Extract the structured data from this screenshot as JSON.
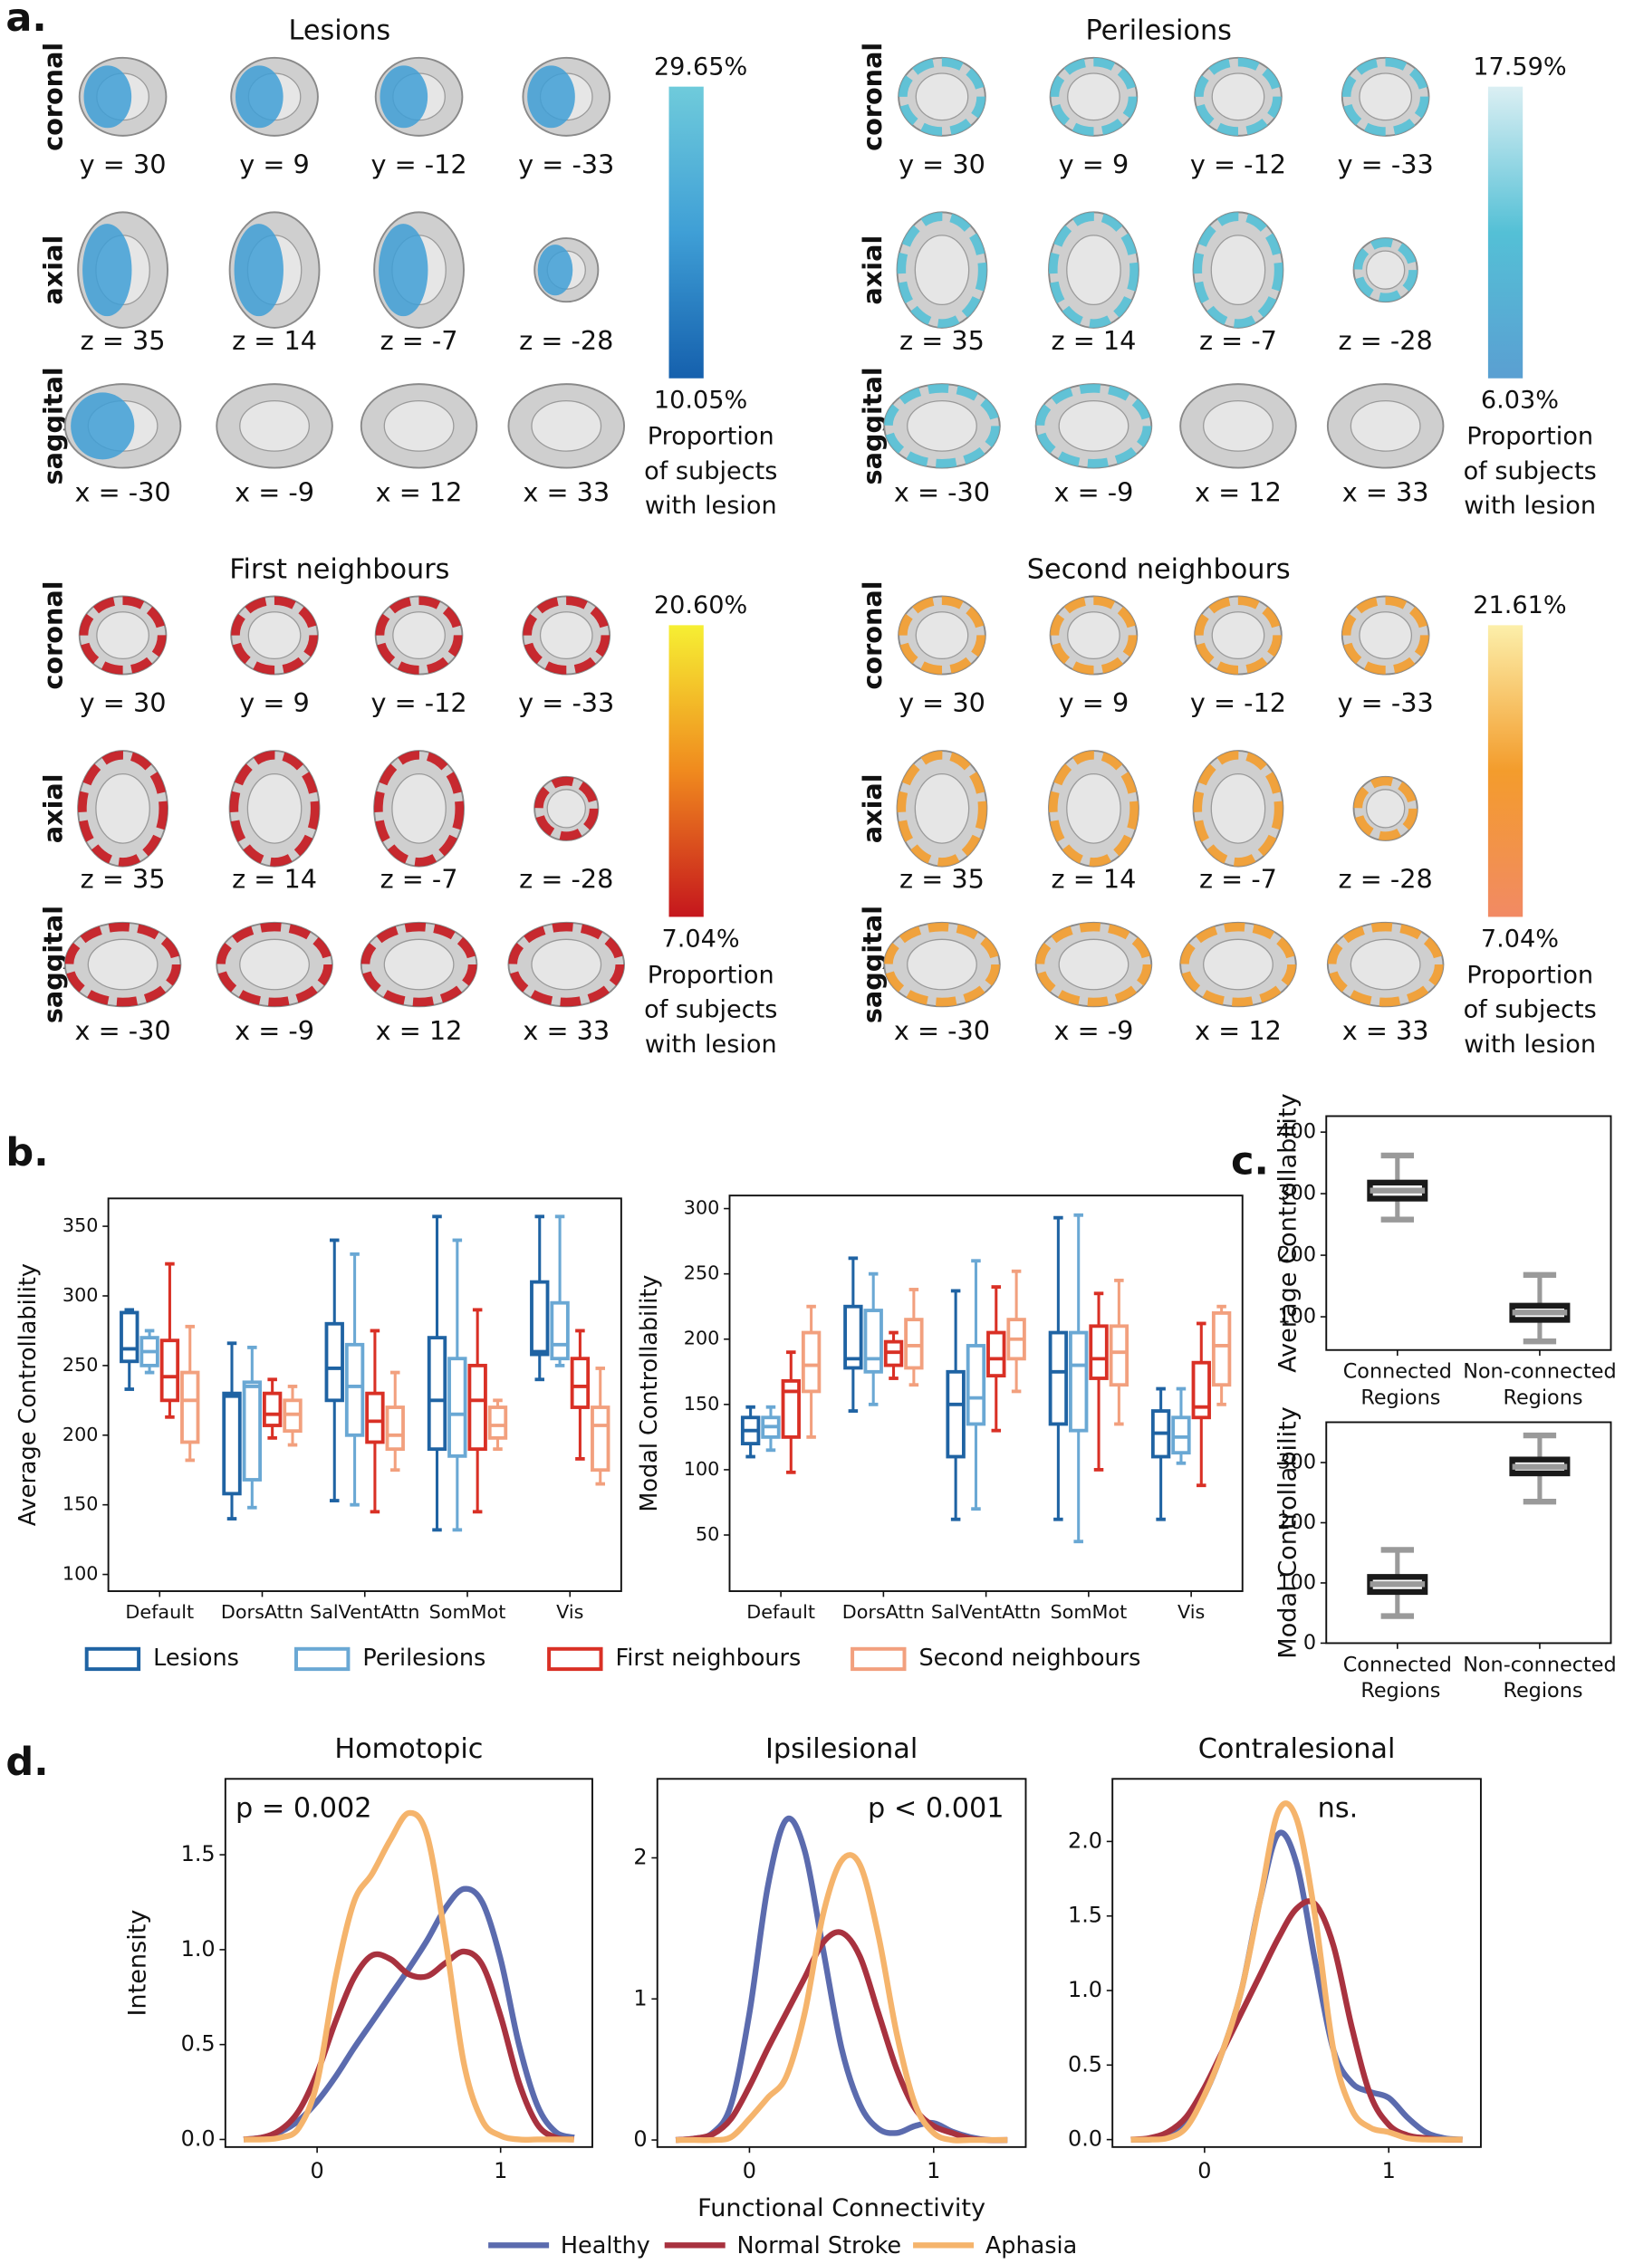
{
  "panel_labels": [
    "a.",
    "b.",
    "c.",
    "d."
  ],
  "brain_maps": [
    {
      "title": "Lesions",
      "views": [
        "coronal",
        "axial",
        "saggital"
      ],
      "slices": [
        [
          "y = 30",
          "y = 9",
          "y = -12",
          "y = -33"
        ],
        [
          "z = 35",
          "z = 14",
          "z = -7",
          "z = -28"
        ],
        [
          "x = -30",
          "x = -9",
          "x = 12",
          "x = 33"
        ]
      ],
      "colorbar": {
        "max": "29.65%",
        "min": "10.05%",
        "label": [
          "Proportion",
          "of subjects",
          "with lesion"
        ],
        "colors": [
          "#6fcbdb",
          "#3f9fd6",
          "#1560ad"
        ]
      }
    },
    {
      "title": "Perilesions",
      "views": [
        "coronal",
        "axial",
        "saggital"
      ],
      "slices": [
        [
          "y = 30",
          "y = 9",
          "y = -12",
          "y = -33"
        ],
        [
          "z = 35",
          "z = 14",
          "z = -7",
          "z = -28"
        ],
        [
          "x = -30",
          "x = -9",
          "x = 12",
          "x = 33"
        ]
      ],
      "colorbar": {
        "max": "17.59%",
        "min": "6.03%",
        "label": [
          "Proportion",
          "of subjects",
          "with lesion"
        ],
        "colors": [
          "#dbeff3",
          "#54c0d6",
          "#5a9fd2"
        ]
      }
    },
    {
      "title": "First neighbours",
      "views": [
        "coronal",
        "axial",
        "saggital"
      ],
      "slices": [
        [
          "y = 30",
          "y = 9",
          "y = -12",
          "y = -33"
        ],
        [
          "z = 35",
          "z = 14",
          "z = -7",
          "z = -28"
        ],
        [
          "x = -30",
          "x = -9",
          "x = 12",
          "x = 33"
        ]
      ],
      "colorbar": {
        "max": "20.60%",
        "min": "7.04%",
        "label": [
          "Proportion",
          "of subjects",
          "with lesion"
        ],
        "colors": [
          "#f6ef33",
          "#f08a1e",
          "#c5161d"
        ]
      }
    },
    {
      "title": "Second neighbours",
      "views": [
        "coronal",
        "axial",
        "saggital"
      ],
      "slices": [
        [
          "y = 30",
          "y = 9",
          "y = -12",
          "y = -33"
        ],
        [
          "z = 35",
          "z = 14",
          "z = -7",
          "z = -28"
        ],
        [
          "x = -30",
          "x = -9",
          "x = 12",
          "x = 33"
        ]
      ],
      "colorbar": {
        "max": "21.61%",
        "min": "7.04%",
        "label": [
          "Proportion",
          "of subjects",
          "with lesion"
        ],
        "colors": [
          "#fcefaa",
          "#f39c2c",
          "#f28a64"
        ]
      }
    }
  ],
  "chart_data": [
    {
      "type": "box",
      "ylabel": "Average Controllability",
      "categories": [
        "Default",
        "DorsAttn",
        "SalVentAttn",
        "SomMot",
        "Vis"
      ],
      "ylim": [
        88,
        370
      ],
      "yticks": [
        100,
        150,
        200,
        250,
        300,
        350
      ],
      "series": [
        {
          "name": "Lesions",
          "color": "#1f63a3",
          "values": [
            [
              233,
              253,
              262,
              288,
              290
            ],
            [
              140,
              158,
              228,
              230,
              266
            ],
            [
              153,
              225,
              248,
              280,
              340
            ],
            [
              132,
              190,
              225,
              270,
              357
            ],
            [
              240,
              258,
              260,
              310,
              357
            ]
          ]
        },
        {
          "name": "Perilesions",
          "color": "#6aa8d4",
          "values": [
            [
              245,
              250,
              260,
              270,
              275
            ],
            [
              148,
              168,
              235,
              238,
              263
            ],
            [
              150,
              200,
              235,
              265,
              330
            ],
            [
              132,
              185,
              215,
              255,
              340
            ],
            [
              250,
              255,
              265,
              295,
              357
            ]
          ]
        },
        {
          "name": "First neighbours",
          "color": "#d93025",
          "values": [
            [
              213,
              225,
              242,
              268,
              323
            ],
            [
              198,
              207,
              215,
              230,
              240
            ],
            [
              145,
              195,
              210,
              230,
              275
            ],
            [
              145,
              190,
              225,
              250,
              290
            ],
            [
              183,
              220,
              235,
              255,
              275
            ]
          ]
        },
        {
          "name": "Second neighbours",
          "color": "#f2a07e",
          "values": [
            [
              182,
              195,
              225,
              245,
              278
            ],
            [
              193,
              203,
              215,
              225,
              235
            ],
            [
              175,
              190,
              200,
              220,
              245
            ],
            [
              190,
              198,
              207,
              220,
              225
            ],
            [
              165,
              175,
              207,
              220,
              248
            ]
          ]
        }
      ]
    },
    {
      "type": "box",
      "ylabel": "Modal Controllability",
      "categories": [
        "Default",
        "DorsAttn",
        "SalVentAttn",
        "SomMot",
        "Vis"
      ],
      "ylim": [
        7,
        310
      ],
      "yticks": [
        50,
        100,
        150,
        200,
        250,
        300
      ],
      "series": [
        {
          "color": "#1f63a3",
          "values": [
            [
              110,
              120,
              130,
              140,
              148
            ],
            [
              145,
              178,
              185,
              225,
              262
            ],
            [
              62,
              110,
              150,
              175,
              237
            ],
            [
              62,
              135,
              175,
              205,
              293
            ],
            [
              62,
              110,
              128,
              145,
              162
            ]
          ]
        },
        {
          "color": "#6aa8d4",
          "values": [
            [
              115,
              125,
              133,
              140,
              148
            ],
            [
              150,
              175,
              185,
              222,
              250
            ],
            [
              70,
              135,
              155,
              195,
              260
            ],
            [
              45,
              130,
              180,
              205,
              295
            ],
            [
              105,
              113,
              125,
              140,
              162
            ]
          ]
        },
        {
          "color": "#d93025",
          "values": [
            [
              98,
              125,
              160,
              168,
              190
            ],
            [
              170,
              180,
              190,
              198,
              205
            ],
            [
              130,
              172,
              185,
              205,
              240
            ],
            [
              100,
              170,
              185,
              210,
              235
            ],
            [
              88,
              140,
              148,
              182,
              212
            ]
          ]
        },
        {
          "color": "#f2a07e",
          "values": [
            [
              125,
              160,
              180,
              205,
              225
            ],
            [
              165,
              178,
              195,
              215,
              238
            ],
            [
              160,
              185,
              200,
              215,
              252
            ],
            [
              135,
              165,
              190,
              210,
              245
            ],
            [
              150,
              165,
              195,
              220,
              225
            ]
          ]
        }
      ]
    },
    {
      "type": "box",
      "ylabel": "Average Controllability",
      "categories": [
        "Connected Regions",
        "Non-connected Regions"
      ],
      "ylim": [
        46,
        426
      ],
      "yticks": [
        100,
        200,
        300,
        400
      ],
      "series": [
        {
          "color": "#1a1a1a",
          "median_color": "#9a9a9a",
          "values": [
            [
              258,
              292,
              305,
              318,
              362
            ],
            [
              60,
              95,
              107,
              118,
              168
            ]
          ]
        }
      ]
    },
    {
      "type": "box",
      "ylabel": "Modal Controllability",
      "categories": [
        "Connected Regions",
        "Non-connected Regions"
      ],
      "ylim": [
        0,
        367
      ],
      "yticks": [
        0,
        100,
        200,
        300
      ],
      "series": [
        {
          "color": "#1a1a1a",
          "median_color": "#9a9a9a",
          "values": [
            [
              45,
              85,
              98,
              110,
              155
            ],
            [
              235,
              282,
              293,
              305,
              345
            ]
          ]
        }
      ]
    },
    {
      "type": "line",
      "title": "Homotopic",
      "ylabel": "Intensity",
      "annotation": "p = 0.002",
      "xlim": [
        -0.5,
        1.5
      ],
      "xticks": [
        0,
        1
      ],
      "ylim": [
        -0.04,
        1.9
      ],
      "yticks": [
        {
          "value": 0,
          "label": "0.0"
        },
        0.5,
        {
          "value": 1,
          "label": "1.0"
        },
        1.5
      ],
      "x": [
        -0.4,
        -0.3,
        -0.2,
        -0.1,
        0,
        0.1,
        0.2,
        0.3,
        0.4,
        0.5,
        0.6,
        0.7,
        0.8,
        0.9,
        1.0,
        1.1,
        1.2,
        1.3,
        1.4
      ],
      "series": [
        {
          "name": "Healthy",
          "color": "#5b6bae",
          "values": [
            0,
            0.01,
            0.04,
            0.1,
            0.2,
            0.33,
            0.48,
            0.62,
            0.76,
            0.9,
            1.05,
            1.22,
            1.32,
            1.25,
            0.95,
            0.5,
            0.18,
            0.04,
            0.01
          ]
        },
        {
          "name": "Normal Stroke",
          "color": "#a8323f",
          "values": [
            0,
            0.01,
            0.05,
            0.15,
            0.35,
            0.62,
            0.85,
            0.97,
            0.95,
            0.87,
            0.86,
            0.93,
            0.99,
            0.92,
            0.65,
            0.3,
            0.08,
            0.01,
            0
          ]
        },
        {
          "name": "Aphasia",
          "color": "#f5b46c",
          "values": [
            0,
            0,
            0.01,
            0.06,
            0.3,
            0.85,
            1.25,
            1.4,
            1.58,
            1.72,
            1.6,
            1.05,
            0.4,
            0.1,
            0.02,
            0,
            0,
            0,
            0
          ]
        }
      ]
    },
    {
      "type": "line",
      "title": "Ipsilesional",
      "xlabel": "Functional Connectivity",
      "annotation": "p < 0.001",
      "xlim": [
        -0.5,
        1.5
      ],
      "xticks": [
        0,
        1
      ],
      "ylim": [
        -0.05,
        2.56
      ],
      "yticks": [
        0,
        1,
        2
      ],
      "x": [
        -0.4,
        -0.3,
        -0.2,
        -0.1,
        0,
        0.1,
        0.2,
        0.3,
        0.4,
        0.5,
        0.6,
        0.7,
        0.8,
        0.9,
        1.0,
        1.1,
        1.2,
        1.3,
        1.4
      ],
      "series": [
        {
          "color": "#5b6bae",
          "values": [
            0,
            0.01,
            0.05,
            0.25,
            0.9,
            1.8,
            2.27,
            2.05,
            1.35,
            0.65,
            0.25,
            0.08,
            0.05,
            0.1,
            0.12,
            0.06,
            0.02,
            0,
            0
          ]
        },
        {
          "color": "#a8323f",
          "values": [
            0,
            0.01,
            0.04,
            0.15,
            0.38,
            0.65,
            0.9,
            1.15,
            1.4,
            1.47,
            1.3,
            0.9,
            0.5,
            0.22,
            0.1,
            0.05,
            0.01,
            0,
            0
          ]
        },
        {
          "color": "#f5b46c",
          "values": [
            0,
            0,
            0,
            0.02,
            0.15,
            0.3,
            0.45,
            0.9,
            1.6,
            1.98,
            1.95,
            1.45,
            0.75,
            0.25,
            0.05,
            0,
            0,
            0,
            0
          ]
        }
      ]
    },
    {
      "type": "line",
      "title": "Contralesional",
      "annotation": "ns.",
      "xlim": [
        -0.5,
        1.5
      ],
      "xticks": [
        0,
        1
      ],
      "ylim": [
        -0.05,
        2.42
      ],
      "yticks": [
        {
          "value": 0,
          "label": "0.0"
        },
        0.5,
        {
          "value": 1,
          "label": "1.0"
        },
        1.5,
        {
          "value": 2,
          "label": "2.0"
        }
      ],
      "x": [
        -0.4,
        -0.3,
        -0.2,
        -0.1,
        0,
        0.1,
        0.2,
        0.3,
        0.4,
        0.5,
        0.6,
        0.7,
        0.8,
        0.9,
        1.0,
        1.1,
        1.2,
        1.3,
        1.4
      ],
      "series": [
        {
          "color": "#5b6bae",
          "values": [
            0,
            0,
            0.02,
            0.1,
            0.3,
            0.6,
            1.0,
            1.6,
            2.05,
            1.85,
            1.2,
            0.6,
            0.38,
            0.32,
            0.28,
            0.15,
            0.05,
            0.01,
            0
          ]
        },
        {
          "color": "#a8323f",
          "values": [
            0,
            0.01,
            0.05,
            0.15,
            0.35,
            0.6,
            0.85,
            1.1,
            1.35,
            1.55,
            1.58,
            1.3,
            0.75,
            0.3,
            0.1,
            0.03,
            0.01,
            0,
            0
          ]
        },
        {
          "color": "#f5b46c",
          "values": [
            0,
            0,
            0.01,
            0.08,
            0.3,
            0.6,
            1.0,
            1.6,
            2.2,
            2.15,
            1.5,
            0.6,
            0.2,
            0.08,
            0.05,
            0.01,
            0,
            0,
            0
          ]
        }
      ]
    }
  ]
}
